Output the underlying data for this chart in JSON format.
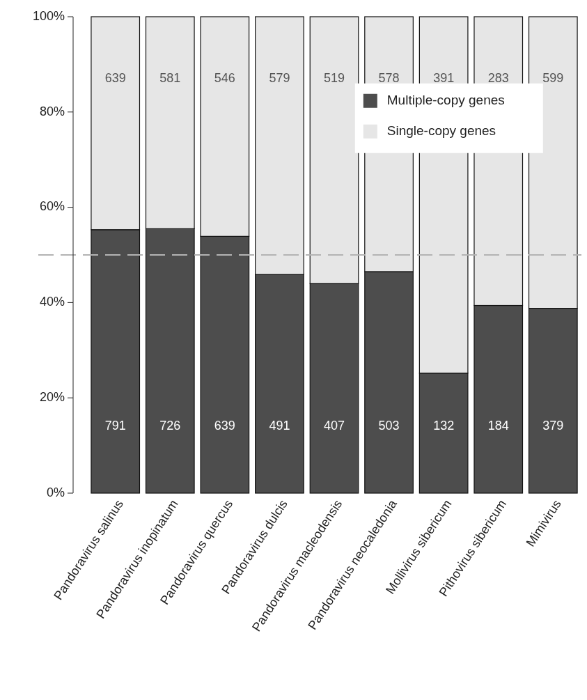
{
  "chart_data": {
    "type": "bar",
    "stacked": true,
    "categories": [
      "Pandoravirus salinus",
      "Pandoravirus inopinatum",
      "Pandoravirus quercus",
      "Pandoravirus dulcis",
      "Pandoravirus macleodensis",
      "Pandoravirus neocaledonia",
      "Mollivirus sibericum",
      "Pithovirus sibericum",
      "Mimivirus"
    ],
    "series": [
      {
        "name": "Multiple-copy genes",
        "color": "#4d4d4d",
        "values": [
          55.3,
          55.5,
          53.9,
          45.9,
          44.0,
          46.5,
          25.2,
          39.4,
          38.8
        ]
      },
      {
        "name": "Single-copy genes",
        "color": "#e6e6e6",
        "values": [
          44.7,
          44.5,
          46.1,
          54.1,
          56.0,
          53.5,
          74.8,
          60.6,
          61.2
        ]
      }
    ],
    "annotations": [
      "791",
      "726",
      "639",
      "491",
      "407",
      "503",
      "132",
      "184",
      "379",
      "639",
      "581",
      "546",
      "579",
      "519",
      "578",
      "391",
      "283",
      "599"
    ],
    "ylim": [
      0,
      100
    ],
    "yticks": [
      {
        "value": 0,
        "label": "0%"
      },
      {
        "value": 20,
        "label": "20%"
      },
      {
        "value": 40,
        "label": "40%"
      },
      {
        "value": 60,
        "label": "60%"
      },
      {
        "value": 80,
        "label": "80%"
      },
      {
        "value": 100,
        "label": "100%"
      }
    ],
    "ref_lines": [
      {
        "axis": "y",
        "value": 50,
        "color": "#b3b3b3",
        "line_style": "dashed"
      }
    ],
    "legend": "top right",
    "grid": false
  }
}
